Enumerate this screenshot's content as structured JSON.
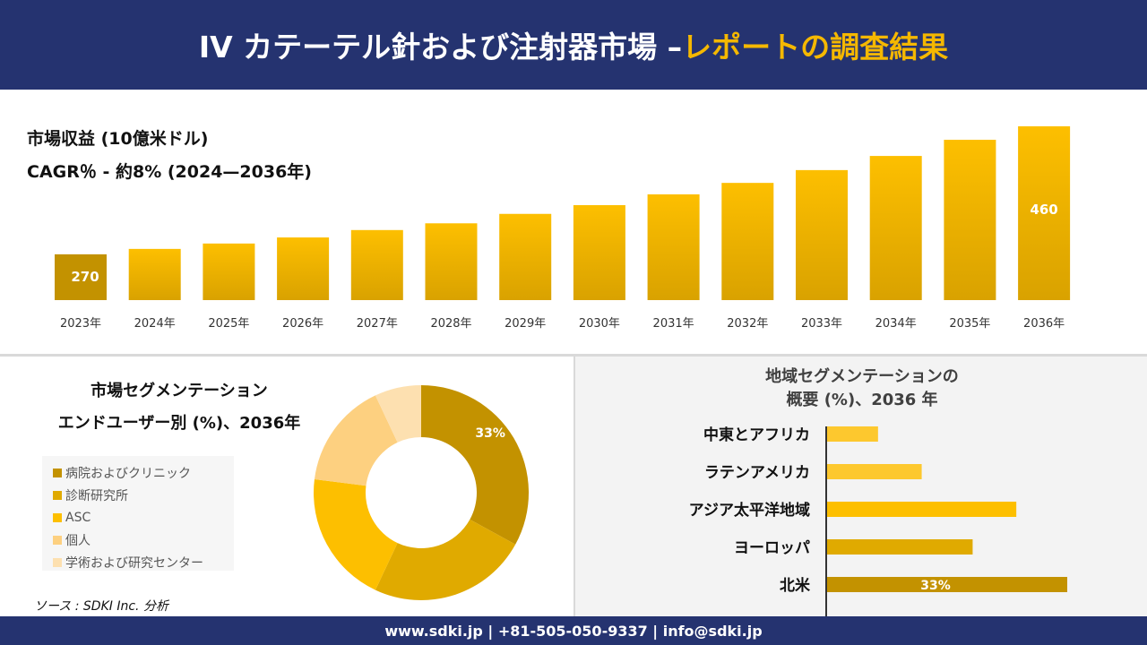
{
  "header": {
    "title_main": "IV カテーテル針および注射器市場 –",
    "title_accent": "レポートの調査結果"
  },
  "colors": {
    "navy": "#253370",
    "accent": "#f5b800"
  },
  "chart_data": [
    {
      "type": "bar",
      "title": "市場収益 (10億米ドル)",
      "subtitle": "CAGR％ - 約8% (2024—2036年)",
      "categories": [
        "2023年",
        "2024年",
        "2025年",
        "2026年",
        "2027年",
        "2028年",
        "2029年",
        "2030年",
        "2031年",
        "2032年",
        "2033年",
        "2034年",
        "2035年",
        "2036年"
      ],
      "values": [
        270,
        278,
        286,
        295,
        306,
        316,
        330,
        343,
        359,
        376,
        395,
        416,
        440,
        460
      ],
      "data_labels": {
        "0": "270",
        "13": "460"
      },
      "ylim": [
        202,
        460
      ]
    },
    {
      "type": "pie",
      "donut": true,
      "title_line1": "市場セグメンテーション",
      "title_line2": "エンドユーザー別 (%)、2036年",
      "labels": [
        "病院およびクリニック",
        "診断研究所",
        "ASC",
        "個人",
        "学術および研究センター"
      ],
      "values": [
        33,
        24,
        20,
        16,
        7
      ],
      "colors": [
        "#c39200",
        "#e0aa00",
        "#fdbf00",
        "#fdd080",
        "#fde0b0"
      ],
      "data_labels": {
        "0": "33%"
      },
      "legend": "left"
    },
    {
      "type": "bar",
      "orientation": "horizontal",
      "title_line1": "地域セグメンテーションの",
      "title_line2": "概要 (%)、2036 年",
      "categories": [
        "中東とアフリカ",
        "ラテンアメリカ",
        "アジア太平洋地域",
        "ヨーロッパ",
        "北米"
      ],
      "values": [
        7,
        13,
        26,
        20,
        33
      ],
      "colors": [
        "#fdc82e",
        "#fdc82e",
        "#fdbf00",
        "#e0aa00",
        "#c39200"
      ],
      "data_labels": {
        "4": "33%"
      }
    }
  ],
  "source": "ソース : SDKI Inc. 分析",
  "footer": "www.sdki.jp | +81-505-050-9337 | info@sdki.jp"
}
